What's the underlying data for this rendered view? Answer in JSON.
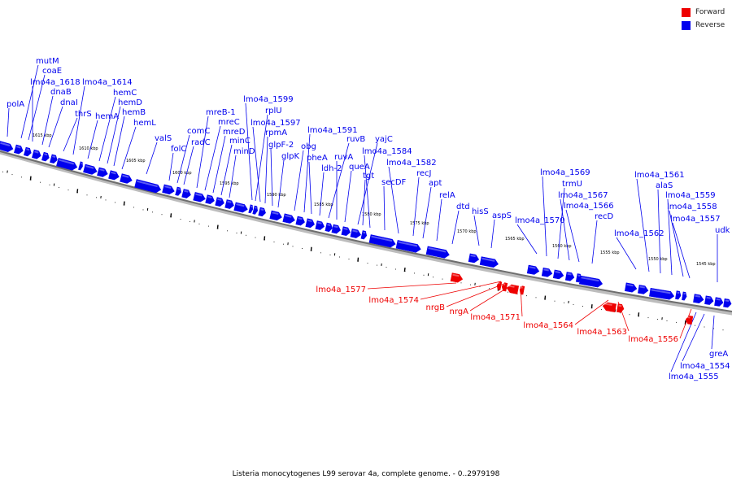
{
  "figure": {
    "caption": "Listeria monocytogenes L99 serovar 4a, complete genome. - 0..2979198",
    "colors": {
      "forward": "#ee0000",
      "reverse": "#0000ee",
      "backbone": "#7a7a7a"
    }
  },
  "legend": {
    "items": [
      {
        "label": "Forward",
        "color": "#ee0000"
      },
      {
        "label": "Reverse",
        "color": "#0000ee"
      }
    ]
  },
  "scale_ticks": [
    "1615 kbp",
    "1610 kbp",
    "1605 kbp",
    "1600 kbp",
    "1595 kbp",
    "1590 kbp",
    "1585 kbp",
    "1580 kbp",
    "1575 kbp",
    "1570 kbp",
    "1565 kbp",
    "1560 kbp",
    "1555 kbp",
    "1550 kbp",
    "1545 kbp"
  ],
  "reverse_genes": [
    "polA",
    "mutM",
    "coaE",
    "lmo4a_1618",
    "dnaB",
    "dnaI",
    "thrS",
    "lmo4a_1614",
    "hemA",
    "hemC",
    "hemD",
    "hemB",
    "hemL",
    "valS",
    "folC",
    "comC",
    "radC",
    "mreB-1",
    "mreC",
    "mreD",
    "minC",
    "minD",
    "lmo4a_1599",
    "rplU",
    "lmo4a_1597",
    "rpmA",
    "glpF-2",
    "glpK",
    "obg",
    "lmo4a_1591",
    "pheA",
    "ldh-2",
    "ruvB",
    "ruvA",
    "queA",
    "yajC",
    "tgt",
    "lmo4a_1584",
    "secDF",
    "lmo4a_1582",
    "recJ",
    "apt",
    "relA",
    "dtd",
    "hisS",
    "aspS",
    "lmo4a_1570",
    "lmo4a_1569",
    "trmU",
    "lmo4a_1567",
    "lmo4a_1566",
    "recD",
    "lmo4a_1562",
    "lmo4a_1561",
    "alaS",
    "lmo4a_1559",
    "lmo4a_1558",
    "lmo4a_1557",
    "udk",
    "greA",
    "lmo4a_1554",
    "lmo4a_1555"
  ],
  "forward_genes": [
    "lmo4a_1577",
    "lmo4a_1574",
    "nrgB",
    "nrgA",
    "lmo4a_1571",
    "lmo4a_1564",
    "lmo4a_1563",
    "lmo4a_1556"
  ]
}
